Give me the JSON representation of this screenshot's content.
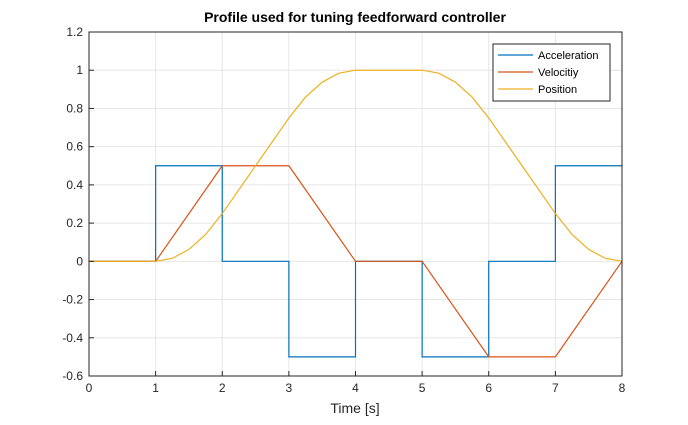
{
  "chart_data": {
    "type": "line",
    "title": "Profile used for tuning feedforward controller",
    "xlabel": "Time [s]",
    "ylabel": "",
    "xlim": [
      0,
      8
    ],
    "ylim": [
      -0.6,
      1.2
    ],
    "xticks": [
      "0",
      "1",
      "2",
      "3",
      "4",
      "5",
      "6",
      "7",
      "8"
    ],
    "yticks": [
      "-0.6",
      "-0.4",
      "-0.2",
      "0",
      "0.2",
      "0.4",
      "0.6",
      "0.8",
      "1",
      "1.2"
    ],
    "grid": true,
    "legend_position": "top-right",
    "series": [
      {
        "name": "Acceleration",
        "color": "#0072BD",
        "step": true,
        "x": [
          0,
          1,
          1,
          2,
          2,
          3,
          3,
          4,
          4,
          5,
          5,
          6,
          6,
          7,
          7,
          8
        ],
        "y": [
          0,
          0,
          0.5,
          0.5,
          0,
          0,
          -0.5,
          -0.5,
          0,
          0,
          -0.5,
          -0.5,
          0,
          0,
          0.5,
          0.5
        ]
      },
      {
        "name": "Velocitiy",
        "color": "#D95319",
        "x": [
          0,
          1,
          2,
          3,
          4,
          5,
          6,
          7,
          8
        ],
        "y": [
          0,
          0,
          0.5,
          0.5,
          0,
          0,
          -0.5,
          -0.5,
          0
        ]
      },
      {
        "name": "Position",
        "color": "#EDB120",
        "x": [
          0,
          1,
          1.25,
          1.5,
          1.75,
          2,
          2.25,
          2.5,
          2.75,
          3,
          3.25,
          3.5,
          3.75,
          4,
          5,
          5.25,
          5.5,
          5.75,
          6,
          6.25,
          6.5,
          6.75,
          7,
          7.25,
          7.5,
          7.75,
          8
        ],
        "y": [
          0,
          0,
          0.0156,
          0.0625,
          0.1406,
          0.25,
          0.375,
          0.5,
          0.625,
          0.75,
          0.8594,
          0.9375,
          0.9844,
          1,
          1,
          0.9844,
          0.9375,
          0.8594,
          0.75,
          0.625,
          0.5,
          0.375,
          0.25,
          0.1406,
          0.0625,
          0.0156,
          0
        ]
      }
    ]
  }
}
